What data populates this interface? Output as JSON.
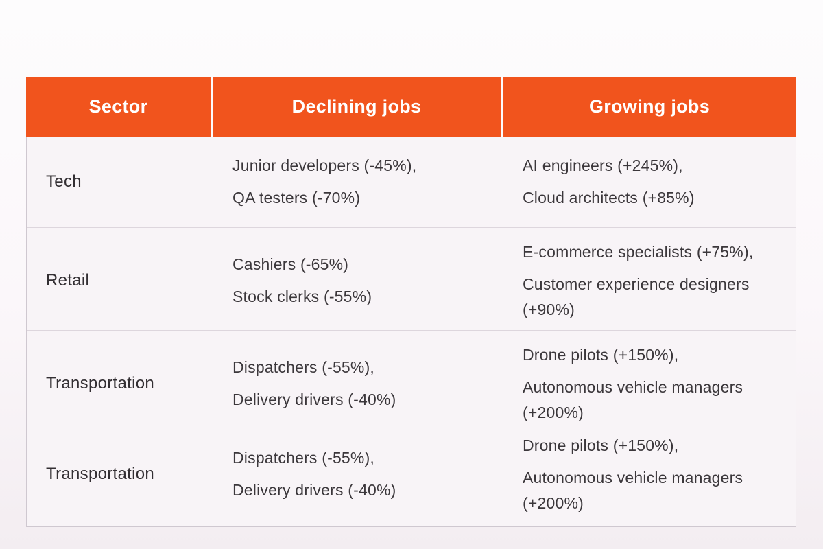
{
  "chart_data": {
    "type": "table",
    "columns": [
      "Sector",
      "Declining jobs",
      "Growing jobs"
    ],
    "rows": [
      {
        "sector": "Tech",
        "declining": [
          "Junior developers (-45%),",
          "QA testers (-70%)"
        ],
        "growing": [
          "AI engineers (+245%),",
          "Cloud architects (+85%)"
        ]
      },
      {
        "sector": "Retail",
        "declining": [
          "Cashiers (-65%)",
          "Stock clerks (-55%)"
        ],
        "growing": [
          "E-commerce specialists (+75%),",
          "Customer experience designers (+90%)"
        ]
      },
      {
        "sector": "Transportation",
        "declining": [
          "Dispatchers (-55%),",
          "Delivery drivers (-40%)"
        ],
        "growing": [
          "Drone pilots (+150%),",
          "Autonomous vehicle managers (+200%)"
        ]
      },
      {
        "sector": "Transportation",
        "declining": [
          "Dispatchers (-55%),",
          "Delivery drivers (-40%)"
        ],
        "growing": [
          "Drone pilots (+150%),",
          "Autonomous vehicle managers (+200%)"
        ]
      }
    ]
  },
  "colors": {
    "header_bg": "#f1541d",
    "header_text": "#ffffff",
    "row_bg": "#f8f4f7",
    "body_text": "#3b373b",
    "divider": "#ddd6dd",
    "outer_border": "#cfc8d0"
  }
}
